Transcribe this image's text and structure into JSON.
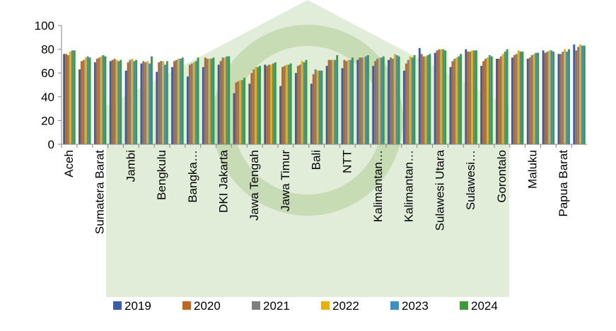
{
  "chart_data": {
    "type": "bar",
    "categories": [
      "Aceh",
      null,
      "Sumatera Barat",
      null,
      "Jambi",
      null,
      "Bengkulu",
      null,
      "Bangka…",
      null,
      "DKI Jakarta",
      null,
      "Jawa Tengah",
      null,
      "Jawa Timur",
      null,
      "Bali",
      null,
      "NTT",
      null,
      "Kalimantan…",
      null,
      "Kalimantan…",
      null,
      "Sulawesi Utara",
      null,
      "Sulawesi…",
      null,
      "Gorontalo",
      null,
      "Maluku",
      null,
      "Papua Barat",
      null
    ],
    "series": [
      {
        "name": "2019",
        "color": "#3b5ca8",
        "values": [
          76,
          63,
          69,
          70,
          62,
          68,
          61,
          65,
          57,
          65,
          67,
          43,
          51,
          67,
          49,
          60,
          51,
          66,
          64,
          71,
          66,
          71,
          62,
          81,
          77,
          65,
          80,
          66,
          72,
          73,
          72,
          79,
          76,
          84
        ]
      },
      {
        "name": "2020",
        "color": "#c0661e",
        "values": [
          76,
          70,
          72,
          71,
          69,
          70,
          69,
          70,
          67,
          73,
          70,
          52,
          60,
          66,
          65,
          66,
          59,
          71,
          71,
          73,
          70,
          73,
          68,
          76,
          79,
          70,
          78,
          70,
          72,
          75,
          73,
          77,
          76,
          79
        ]
      },
      {
        "name": "2021",
        "color": "#7f7f7f",
        "values": [
          75,
          71,
          73,
          72,
          71,
          69,
          70,
          71,
          68,
          72,
          73,
          53,
          63,
          67,
          66,
          67,
          63,
          71,
          70,
          73,
          72,
          72,
          71,
          74,
          80,
          72,
          78,
          72,
          74,
          76,
          75,
          78,
          78,
          82
        ]
      },
      {
        "name": "2022",
        "color": "#e8b100",
        "values": [
          78,
          73,
          74,
          71,
          72,
          70,
          70,
          72,
          69,
          72,
          73,
          54,
          65,
          67,
          67,
          70,
          62,
          71,
          71,
          73,
          73,
          76,
          74,
          74,
          80,
          73,
          79,
          73,
          76,
          79,
          76,
          79,
          80,
          84
        ]
      },
      {
        "name": "2023",
        "color": "#3a8fc4",
        "values": [
          79,
          74,
          75,
          70,
          70,
          68,
          67,
          72,
          70,
          72,
          74,
          54,
          65,
          68,
          67,
          69,
          62,
          71,
          71,
          74,
          73,
          75,
          73,
          75,
          80,
          74,
          79,
          75,
          78,
          78,
          77,
          79,
          78,
          83
        ]
      },
      {
        "name": "2024",
        "color": "#3f9b3a",
        "values": [
          79,
          73,
          74,
          71,
          71,
          74,
          70,
          73,
          73,
          73,
          74,
          56,
          66,
          69,
          68,
          71,
          62,
          75,
          73,
          75,
          74,
          74,
          75,
          76,
          79,
          76,
          79,
          74,
          80,
          78,
          77,
          78,
          80,
          83
        ]
      }
    ],
    "ylim": [
      0,
      100
    ],
    "yticks": [
      0,
      20,
      40,
      60,
      80,
      100
    ],
    "legend": "bottom"
  }
}
